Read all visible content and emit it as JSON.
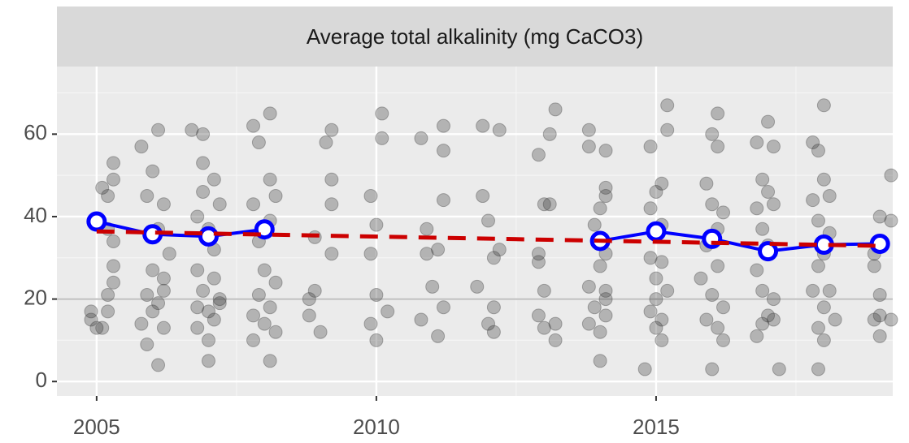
{
  "chart_data": {
    "type": "scatter",
    "title": "Average total alkalinity (mg CaCO3)",
    "xlim": [
      2004.29,
      2019.23
    ],
    "ylim": [
      -3.5,
      76.4
    ],
    "xticks": [
      2005,
      2010,
      2015
    ],
    "yticks": [
      0,
      20,
      40,
      60
    ],
    "xminor": [
      2007.5,
      2012.5,
      2017.5
    ],
    "yminor": [
      10,
      30,
      50,
      70
    ],
    "grid": true,
    "hline": {
      "value": 20,
      "color": "#bdbdbd"
    },
    "series": [
      {
        "type": "scatter",
        "color": "#333333",
        "x": [
          2004.9,
          2005.1,
          2005.2,
          2005.3,
          2005.3,
          2005.2,
          2005.3,
          2005.3,
          2005.1,
          2004.9,
          2005.2,
          2005.3,
          2005.0,
          2005.2,
          2005.8,
          2006.1,
          2006.0,
          2005.9,
          2006.2,
          2006.1,
          2006.0,
          2006.2,
          2005.9,
          2006.1,
          2006.0,
          2005.8,
          2006.2,
          2005.9,
          2006.1,
          2006.3,
          2006.2,
          2006.7,
          2006.9,
          2006.9,
          2007.1,
          2006.9,
          2007.2,
          2006.8,
          2007.0,
          2007.1,
          2006.8,
          2007.1,
          2006.9,
          2007.2,
          2006.8,
          2007.0,
          2007.1,
          2006.8,
          2007.0,
          2007.0,
          2007.2,
          2007.8,
          2008.1,
          2007.9,
          2008.1,
          2008.2,
          2007.8,
          2008.1,
          2007.9,
          2008.0,
          2008.2,
          2007.9,
          2008.1,
          2007.8,
          2008.0,
          2008.2,
          2007.8,
          2008.1,
          2009.2,
          2009.1,
          2009.2,
          2009.2,
          2008.9,
          2009.2,
          2008.9,
          2008.8,
          2008.8,
          2009.0,
          2010.1,
          2010.1,
          2009.9,
          2010.0,
          2009.9,
          2010.0,
          2010.2,
          2009.9,
          2010.0,
          2011.2,
          2010.8,
          2011.2,
          2011.2,
          2010.9,
          2011.1,
          2010.9,
          2011.0,
          2011.2,
          2010.8,
          2011.1,
          2011.9,
          2012.2,
          2011.9,
          2012.0,
          2012.2,
          2012.1,
          2011.8,
          2012.1,
          2012.0,
          2012.1,
          2013.2,
          2013.1,
          2012.9,
          2013.0,
          2013.1,
          2012.9,
          2012.9,
          2013.0,
          2012.9,
          2013.2,
          2013.2,
          2013.0,
          2013.8,
          2013.8,
          2014.1,
          2014.1,
          2014.1,
          2014.0,
          2013.9,
          2014.0,
          2014.1,
          2014.0,
          2013.8,
          2014.1,
          2013.9,
          2014.1,
          2013.8,
          2014.0,
          2014.0,
          2014.1,
          2015.2,
          2015.2,
          2014.9,
          2015.1,
          2015.0,
          2014.9,
          2015.1,
          2014.9,
          2015.0,
          2015.2,
          2015.0,
          2014.9,
          2015.1,
          2015.0,
          2015.1,
          2014.8,
          2015.1,
          2016.1,
          2016.0,
          2016.1,
          2015.9,
          2016.0,
          2016.2,
          2016.1,
          2015.9,
          2016.1,
          2015.8,
          2016.0,
          2016.2,
          2015.9,
          2016.1,
          2016.2,
          2016.0,
          2017.0,
          2016.8,
          2017.1,
          2016.9,
          2017.0,
          2016.8,
          2017.1,
          2016.9,
          2017.0,
          2016.8,
          2016.9,
          2017.1,
          2017.0,
          2016.9,
          2017.1,
          2016.8,
          2017.2,
          2017.8,
          2018.0,
          2017.9,
          2018.0,
          2018.1,
          2017.8,
          2017.9,
          2018.1,
          2018.0,
          2017.9,
          2018.1,
          2017.8,
          2018.0,
          2018.2,
          2017.9,
          2018.0,
          2017.9,
          2019.2,
          2019.0,
          2019.2,
          2018.9,
          2018.9,
          2019.0,
          2019.0,
          2019.2,
          2018.9,
          2019.0
        ],
        "values": [
          15,
          13,
          17,
          24,
          28,
          45,
          49,
          53,
          47,
          17,
          21,
          34,
          13,
          37,
          57,
          61,
          51,
          45,
          43,
          37,
          27,
          25,
          21,
          19,
          17,
          14,
          13,
          9,
          4,
          31,
          22,
          61,
          60,
          53,
          49,
          46,
          43,
          40,
          37,
          32,
          27,
          25,
          22,
          20,
          18,
          17,
          15,
          13,
          10,
          5,
          19,
          62,
          65,
          58,
          49,
          45,
          43,
          39,
          34,
          27,
          24,
          21,
          18,
          16,
          14,
          12,
          10,
          5,
          61,
          58,
          49,
          43,
          35,
          31,
          22,
          20,
          16,
          12,
          65,
          59,
          45,
          38,
          31,
          21,
          17,
          14,
          10,
          62,
          59,
          56,
          44,
          37,
          32,
          31,
          23,
          18,
          15,
          11,
          62,
          61,
          45,
          39,
          32,
          30,
          23,
          18,
          14,
          12,
          66,
          60,
          55,
          43,
          43,
          31,
          29,
          22,
          16,
          14,
          10,
          13,
          61,
          57,
          56,
          47,
          45,
          42,
          38,
          34,
          31,
          28,
          23,
          22,
          18,
          16,
          14,
          12,
          5,
          20,
          67,
          61,
          57,
          48,
          46,
          42,
          38,
          30,
          25,
          22,
          20,
          17,
          15,
          13,
          10,
          3,
          29,
          65,
          60,
          57,
          48,
          43,
          41,
          37,
          33,
          28,
          25,
          21,
          18,
          15,
          13,
          10,
          3,
          63,
          58,
          57,
          49,
          46,
          42,
          43,
          37,
          33,
          27,
          22,
          20,
          16,
          14,
          15,
          11,
          3,
          58,
          67,
          56,
          49,
          45,
          44,
          39,
          36,
          31,
          28,
          22,
          22,
          18,
          15,
          13,
          10,
          3,
          50,
          40,
          39,
          31,
          28,
          21,
          16,
          15,
          15,
          11
        ]
      },
      {
        "type": "line",
        "color": "#0000ff",
        "markers": true,
        "x": [
          2005,
          2006,
          2007,
          2008,
          2009,
          2010,
          2011,
          2012,
          2013,
          2014,
          2015,
          2016,
          2017,
          2018,
          2019
        ],
        "values": [
          38.8,
          35.7,
          35.2,
          36.9,
          null,
          null,
          null,
          null,
          null,
          34.1,
          36.4,
          34.6,
          31.6,
          33.2,
          33.4
        ]
      },
      {
        "type": "line",
        "color": "#cc0000",
        "dashed": true,
        "x": [
          2005,
          2019
        ],
        "values": [
          36.4,
          32.9
        ]
      }
    ]
  }
}
